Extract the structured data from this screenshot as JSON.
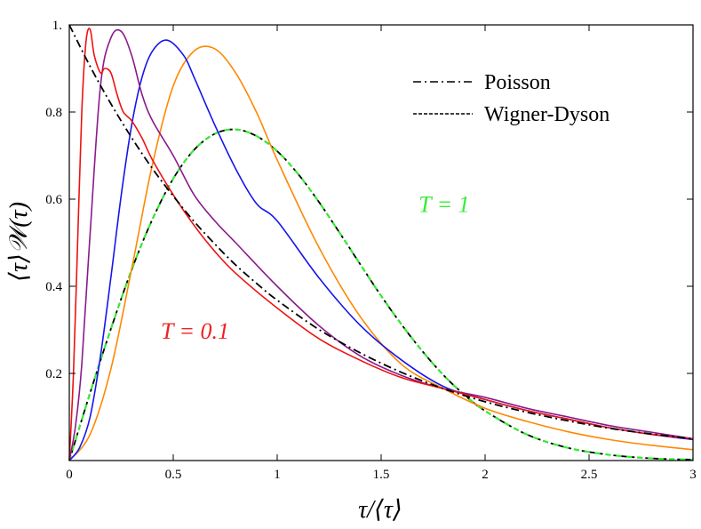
{
  "chart_data": {
    "type": "line",
    "xlabel": "τ/⟨τ⟩",
    "ylabel": "⟨τ⟩𝒲(τ)",
    "xlim": [
      0,
      3
    ],
    "ylim": [
      0,
      1
    ],
    "x_ticks": [
      0,
      0.5,
      1,
      1.5,
      2,
      2.5,
      3
    ],
    "x_tick_labels": [
      "0",
      "0.5",
      "1",
      "1.5",
      "2",
      "2.5",
      "3"
    ],
    "y_ticks": [
      0.2,
      0.4,
      0.6,
      0.8,
      1.0
    ],
    "y_tick_labels": [
      "0.2",
      "0.4",
      "0.6",
      "0.8",
      "1."
    ],
    "grid": false,
    "legend_position": "top-right",
    "legend": [
      {
        "label": "Poisson",
        "style": "dashdot",
        "color": "#000000"
      },
      {
        "label": "Wigner-Dyson",
        "style": "dashed",
        "color": "#000000"
      }
    ],
    "annotations": [
      {
        "text": "T = 1",
        "color": "#33ee33",
        "x": 1.68,
        "y": 0.57
      },
      {
        "text": "T = 0.1",
        "color": "#ee2222",
        "x": 0.44,
        "y": 0.28
      }
    ],
    "series": [
      {
        "name": "Poisson",
        "color": "#000000",
        "style": "dashdot",
        "x": [
          0,
          0.1,
          0.2,
          0.3,
          0.4,
          0.5,
          0.6,
          0.7,
          0.8,
          0.9,
          1.0,
          1.2,
          1.4,
          1.6,
          1.8,
          2.0,
          2.2,
          2.4,
          2.6,
          2.8,
          3.0
        ],
        "y": [
          1.0,
          0.905,
          0.819,
          0.741,
          0.67,
          0.607,
          0.549,
          0.497,
          0.449,
          0.407,
          0.368,
          0.301,
          0.247,
          0.202,
          0.165,
          0.135,
          0.111,
          0.091,
          0.074,
          0.061,
          0.05
        ]
      },
      {
        "name": "Wigner-Dyson",
        "color": "#000000",
        "style": "dashed",
        "x": [
          0,
          0.1,
          0.2,
          0.3,
          0.4,
          0.5,
          0.6,
          0.7,
          0.8,
          0.9,
          1.0,
          1.1,
          1.2,
          1.3,
          1.4,
          1.5,
          1.6,
          1.7,
          1.8,
          1.9,
          2.0,
          2.2,
          2.4,
          2.6,
          2.8,
          3.0
        ],
        "y": [
          0,
          0.155,
          0.302,
          0.438,
          0.554,
          0.647,
          0.713,
          0.75,
          0.76,
          0.745,
          0.71,
          0.658,
          0.594,
          0.523,
          0.45,
          0.378,
          0.311,
          0.25,
          0.196,
          0.151,
          0.114,
          0.06,
          0.029,
          0.013,
          0.005,
          0.002
        ]
      },
      {
        "color": "#33ee33",
        "style": "dashed-overlay",
        "x": [
          0,
          0.1,
          0.2,
          0.3,
          0.4,
          0.5,
          0.6,
          0.7,
          0.8,
          0.9,
          1.0,
          1.1,
          1.2,
          1.3,
          1.4,
          1.5,
          1.6,
          1.7,
          1.8,
          1.9,
          2.0,
          2.2,
          2.4,
          2.6,
          2.8,
          3.0
        ],
        "y": [
          0,
          0.155,
          0.302,
          0.438,
          0.554,
          0.647,
          0.713,
          0.75,
          0.76,
          0.745,
          0.71,
          0.658,
          0.594,
          0.523,
          0.45,
          0.378,
          0.311,
          0.25,
          0.196,
          0.151,
          0.114,
          0.06,
          0.029,
          0.013,
          0.005,
          0.002
        ]
      },
      {
        "color": "#ff8800",
        "style": "solid",
        "x": [
          0,
          0.1,
          0.2,
          0.3,
          0.4,
          0.5,
          0.6,
          0.7,
          0.8,
          0.9,
          1.0,
          1.2,
          1.4,
          1.6,
          1.8,
          2.0,
          2.2,
          2.4,
          2.6,
          2.8,
          3.0
        ],
        "y": [
          0,
          0.06,
          0.21,
          0.44,
          0.68,
          0.86,
          0.94,
          0.945,
          0.89,
          0.8,
          0.69,
          0.49,
          0.33,
          0.22,
          0.165,
          0.12,
          0.09,
          0.066,
          0.048,
          0.035,
          0.025
        ]
      },
      {
        "color": "#1515ee",
        "style": "solid",
        "x": [
          0,
          0.05,
          0.1,
          0.15,
          0.2,
          0.25,
          0.3,
          0.35,
          0.4,
          0.47,
          0.55,
          0.6,
          0.7,
          0.8,
          0.9,
          1.0,
          1.2,
          1.4,
          1.6,
          1.8,
          2.0,
          2.2,
          2.4,
          2.6,
          2.8,
          3.0
        ],
        "y": [
          0,
          0.03,
          0.1,
          0.24,
          0.42,
          0.61,
          0.77,
          0.88,
          0.94,
          0.965,
          0.93,
          0.88,
          0.77,
          0.67,
          0.59,
          0.55,
          0.42,
          0.31,
          0.23,
          0.17,
          0.14,
          0.115,
          0.095,
          0.075,
          0.06,
          0.048
        ]
      },
      {
        "color": "#8b1a8b",
        "style": "solid",
        "x": [
          0,
          0.03,
          0.06,
          0.1,
          0.15,
          0.2,
          0.25,
          0.3,
          0.35,
          0.4,
          0.5,
          0.6,
          0.7,
          0.8,
          1.0,
          1.2,
          1.4,
          1.6,
          1.8,
          2.0,
          2.2,
          2.4,
          2.6,
          2.8,
          3.0
        ],
        "y": [
          0,
          0.08,
          0.22,
          0.52,
          0.86,
          0.97,
          0.985,
          0.93,
          0.84,
          0.78,
          0.7,
          0.61,
          0.55,
          0.5,
          0.4,
          0.31,
          0.24,
          0.195,
          0.165,
          0.145,
          0.12,
          0.1,
          0.08,
          0.065,
          0.05
        ]
      },
      {
        "color": "#ee1111",
        "style": "solid",
        "x": [
          0,
          0.02,
          0.04,
          0.06,
          0.08,
          0.1,
          0.12,
          0.15,
          0.17,
          0.2,
          0.23,
          0.26,
          0.3,
          0.35,
          0.4,
          0.5,
          0.6,
          0.7,
          0.8,
          1.0,
          1.2,
          1.4,
          1.6,
          1.8,
          2.0,
          2.2,
          2.4,
          2.6,
          2.8,
          3.0
        ],
        "y": [
          0,
          0.2,
          0.5,
          0.8,
          0.96,
          0.99,
          0.93,
          0.89,
          0.9,
          0.89,
          0.84,
          0.8,
          0.78,
          0.74,
          0.69,
          0.61,
          0.54,
          0.48,
          0.43,
          0.35,
          0.28,
          0.23,
          0.19,
          0.165,
          0.14,
          0.115,
          0.095,
          0.075,
          0.06,
          0.05
        ]
      }
    ]
  }
}
